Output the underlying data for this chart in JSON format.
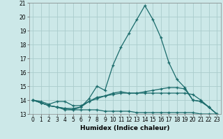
{
  "xlabel": "Humidex (Indice chaleur)",
  "background_color": "#cce8e8",
  "grid_color": "#aacccc",
  "line_color": "#1a6b6b",
  "x_values": [
    0,
    1,
    2,
    3,
    4,
    5,
    6,
    7,
    8,
    9,
    10,
    11,
    12,
    13,
    14,
    15,
    16,
    17,
    18,
    19,
    20,
    21,
    22,
    23
  ],
  "series": [
    [
      14.0,
      13.8,
      13.6,
      13.5,
      13.3,
      13.3,
      13.5,
      14.1,
      15.0,
      14.7,
      16.5,
      17.8,
      18.8,
      19.8,
      20.8,
      19.8,
      18.5,
      16.7,
      15.5,
      14.9,
      14.0,
      13.9,
      13.5,
      13.0
    ],
    [
      14.0,
      13.9,
      13.7,
      13.9,
      13.9,
      13.6,
      13.6,
      13.9,
      14.1,
      14.3,
      14.5,
      14.6,
      14.5,
      14.5,
      14.6,
      14.7,
      14.8,
      14.9,
      14.9,
      14.8,
      14.0,
      13.9,
      13.5,
      13.0
    ],
    [
      14.0,
      13.8,
      13.6,
      13.5,
      13.4,
      13.3,
      13.3,
      13.3,
      13.3,
      13.2,
      13.2,
      13.2,
      13.2,
      13.1,
      13.1,
      13.1,
      13.1,
      13.1,
      13.1,
      13.1,
      13.1,
      13.0,
      13.0,
      13.0
    ],
    [
      14.0,
      13.8,
      13.6,
      13.5,
      13.4,
      13.4,
      13.5,
      13.9,
      14.2,
      14.3,
      14.4,
      14.5,
      14.5,
      14.5,
      14.5,
      14.5,
      14.5,
      14.5,
      14.5,
      14.5,
      14.4,
      14.0,
      13.5,
      13.0
    ]
  ],
  "ylim": [
    13,
    21
  ],
  "xlim": [
    -0.5,
    23.5
  ],
  "yticks": [
    13,
    14,
    15,
    16,
    17,
    18,
    19,
    20,
    21
  ],
  "xticks": [
    0,
    1,
    2,
    3,
    4,
    5,
    6,
    7,
    8,
    9,
    10,
    11,
    12,
    13,
    14,
    15,
    16,
    17,
    18,
    19,
    20,
    21,
    22,
    23
  ],
  "tick_fontsize": 5.5,
  "xlabel_fontsize": 6.5
}
